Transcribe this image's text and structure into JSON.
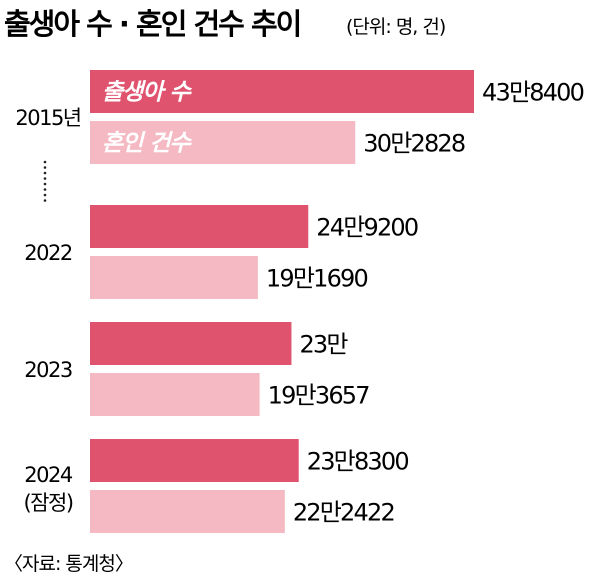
{
  "chart_data": {
    "type": "bar",
    "orientation": "horizontal",
    "title": "출생아 수 · 혼인 건수 추이",
    "unit_note": "(단위: 명, 건)",
    "categories": [
      "2015년",
      "2022",
      "2023",
      "2024"
    ],
    "category_notes": [
      "",
      "",
      "",
      "(잠정)"
    ],
    "series": [
      {
        "name": "출생아 수",
        "color": "#e0536f",
        "values": [
          438400,
          249200,
          230000,
          238300
        ],
        "labels": [
          "43만8400",
          "24만9200",
          "23만",
          "23만8300"
        ]
      },
      {
        "name": "혼인 건수",
        "color": "#f4b9c2",
        "values": [
          302828,
          191690,
          193657,
          222422
        ],
        "labels": [
          "30만2828",
          "19만1690",
          "19만3657",
          "22만2422"
        ]
      }
    ],
    "legend_placement": "inside first bars",
    "axis_break_after_first": true,
    "grid": false
  },
  "source": "〈자료: 통계청〉"
}
